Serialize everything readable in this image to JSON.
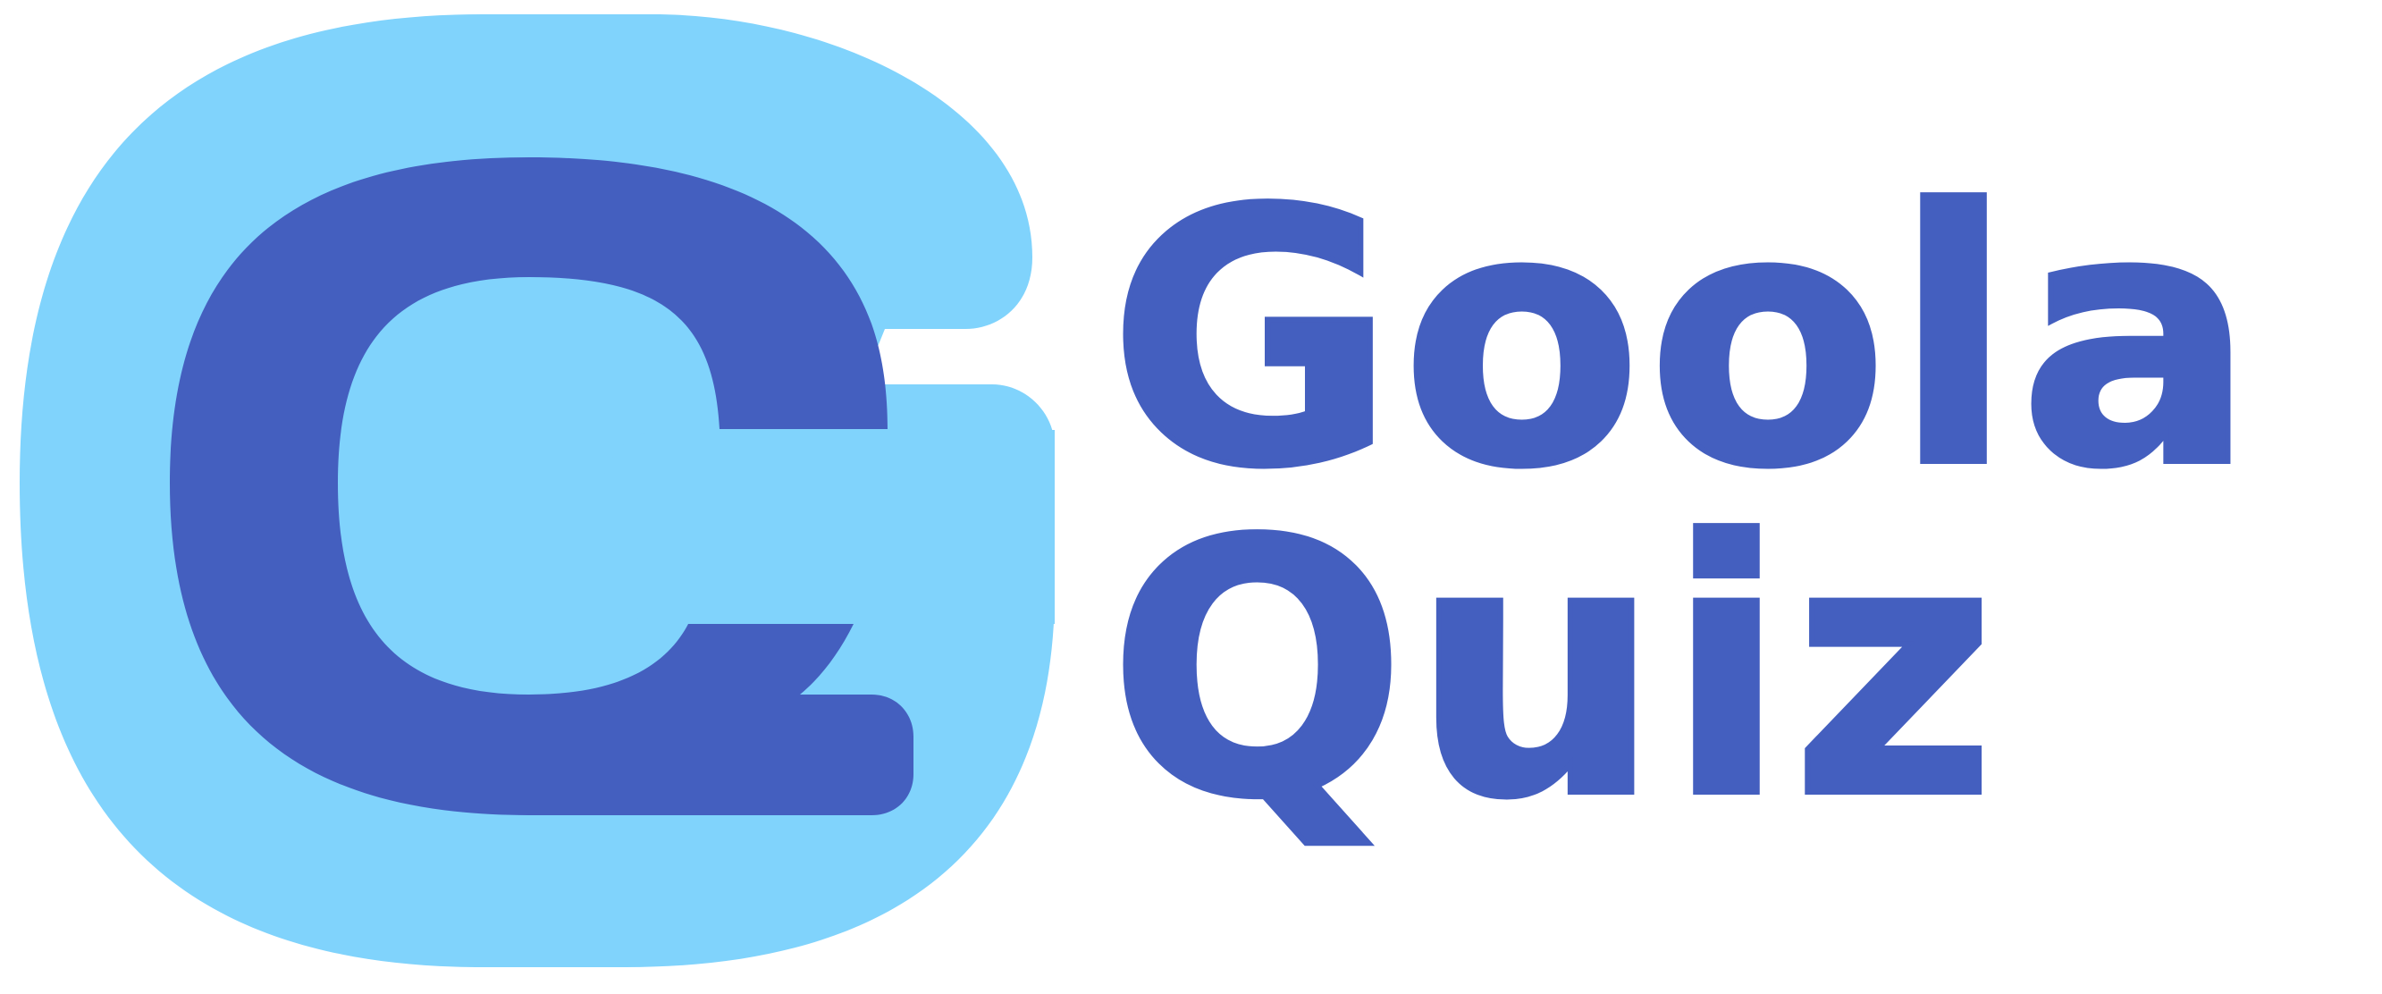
{
  "brand": {
    "line_1": "Goola",
    "line_2": "Quiz",
    "colors": {
      "primary_blue": "#445FBF",
      "light_blue": "#80D3FC",
      "background": "#FFFFFF"
    },
    "emblem_icon": "g-monogram-icon"
  }
}
